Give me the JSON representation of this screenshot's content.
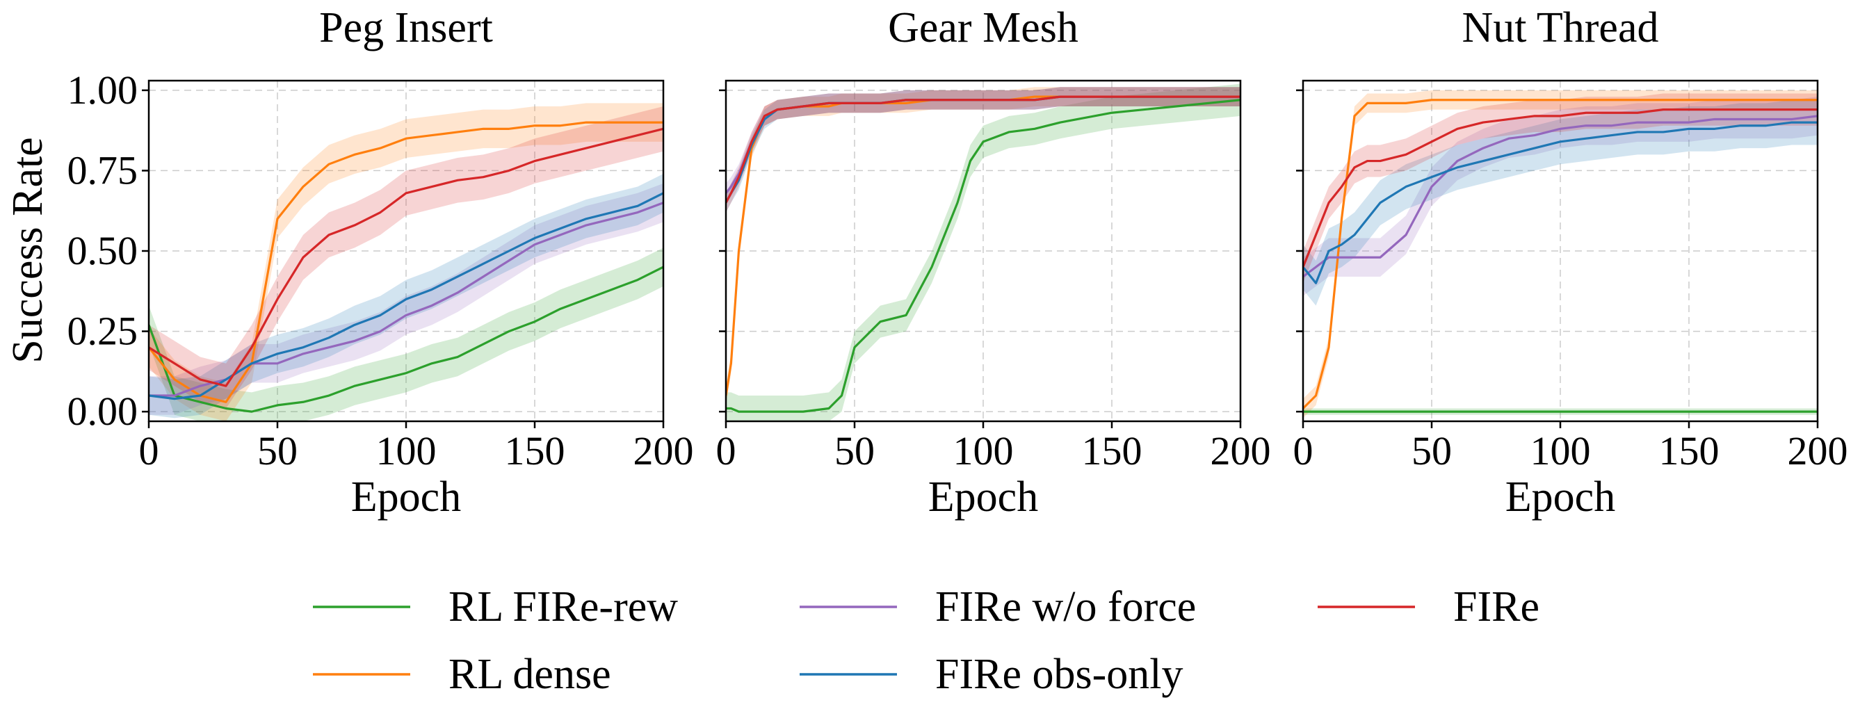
{
  "chart_data": [
    {
      "type": "line",
      "title": "Peg Insert",
      "xlabel": "Epoch",
      "ylabel": "Success Rate",
      "xlim": [
        0,
        200
      ],
      "ylim": [
        -0.03,
        1.03
      ],
      "xticks": [
        "0",
        "50",
        "100",
        "150",
        "200"
      ],
      "yticks": [
        "0.00",
        "0.25",
        "0.50",
        "0.75",
        "1.00"
      ],
      "grid": true,
      "x": [
        0,
        10,
        20,
        30,
        40,
        50,
        60,
        70,
        80,
        90,
        100,
        110,
        120,
        130,
        140,
        150,
        160,
        170,
        180,
        190,
        200
      ],
      "series": [
        {
          "name": "RL FIRe-rew",
          "color": "#2ca02c",
          "band": 0.06,
          "values": [
            0.27,
            0.05,
            0.03,
            0.01,
            0.0,
            0.02,
            0.03,
            0.05,
            0.08,
            0.1,
            0.12,
            0.15,
            0.17,
            0.21,
            0.25,
            0.28,
            0.32,
            0.35,
            0.38,
            0.41,
            0.45
          ]
        },
        {
          "name": "RL dense",
          "color": "#ff7f0e",
          "band": 0.06,
          "values": [
            0.2,
            0.1,
            0.05,
            0.03,
            0.15,
            0.6,
            0.7,
            0.77,
            0.8,
            0.82,
            0.85,
            0.86,
            0.87,
            0.88,
            0.88,
            0.89,
            0.89,
            0.9,
            0.9,
            0.9,
            0.9
          ]
        },
        {
          "name": "FIRe w/o force",
          "color": "#9467bd",
          "band": 0.06,
          "values": [
            0.05,
            0.05,
            0.08,
            0.1,
            0.15,
            0.15,
            0.18,
            0.2,
            0.22,
            0.25,
            0.3,
            0.33,
            0.37,
            0.42,
            0.47,
            0.52,
            0.55,
            0.58,
            0.6,
            0.62,
            0.65
          ]
        },
        {
          "name": "FIRe obs-only",
          "color": "#1f77b4",
          "band": 0.06,
          "values": [
            0.05,
            0.04,
            0.05,
            0.1,
            0.15,
            0.18,
            0.2,
            0.23,
            0.27,
            0.3,
            0.35,
            0.38,
            0.42,
            0.46,
            0.5,
            0.54,
            0.57,
            0.6,
            0.62,
            0.64,
            0.68
          ]
        },
        {
          "name": "FIRe",
          "color": "#d62728",
          "band": 0.07,
          "values": [
            0.2,
            0.15,
            0.1,
            0.08,
            0.2,
            0.35,
            0.48,
            0.55,
            0.58,
            0.62,
            0.68,
            0.7,
            0.72,
            0.73,
            0.75,
            0.78,
            0.8,
            0.82,
            0.84,
            0.86,
            0.88
          ]
        }
      ]
    },
    {
      "type": "line",
      "title": "Gear Mesh",
      "xlabel": "Epoch",
      "xlim": [
        0,
        200
      ],
      "ylim": [
        -0.03,
        1.03
      ],
      "xticks": [
        "0",
        "50",
        "100",
        "150",
        "200"
      ],
      "grid": true,
      "x": [
        0,
        2,
        5,
        10,
        15,
        20,
        30,
        40,
        45,
        50,
        60,
        70,
        80,
        90,
        95,
        100,
        110,
        120,
        130,
        150,
        175,
        200
      ],
      "series": [
        {
          "name": "RL FIRe-rew",
          "color": "#2ca02c",
          "band": 0.05,
          "values": [
            0.01,
            0.01,
            0.0,
            0.0,
            0.0,
            0.0,
            0.0,
            0.01,
            0.05,
            0.2,
            0.28,
            0.3,
            0.45,
            0.65,
            0.78,
            0.84,
            0.87,
            0.88,
            0.9,
            0.93,
            0.95,
            0.97
          ]
        },
        {
          "name": "RL dense",
          "color": "#ff7f0e",
          "band": 0.03,
          "values": [
            0.05,
            0.15,
            0.5,
            0.82,
            0.92,
            0.94,
            0.95,
            0.95,
            0.96,
            0.96,
            0.96,
            0.96,
            0.97,
            0.97,
            0.97,
            0.97,
            0.97,
            0.98,
            0.98,
            0.98,
            0.98,
            0.98
          ]
        },
        {
          "name": "FIRe w/o force",
          "color": "#9467bd",
          "band": 0.03,
          "values": [
            0.68,
            0.7,
            0.74,
            0.84,
            0.92,
            0.94,
            0.95,
            0.96,
            0.96,
            0.96,
            0.96,
            0.97,
            0.97,
            0.97,
            0.97,
            0.97,
            0.97,
            0.97,
            0.98,
            0.98,
            0.98,
            0.98
          ]
        },
        {
          "name": "FIRe obs-only",
          "color": "#1f77b4",
          "band": 0.03,
          "values": [
            0.65,
            0.68,
            0.72,
            0.83,
            0.91,
            0.94,
            0.95,
            0.96,
            0.96,
            0.96,
            0.96,
            0.97,
            0.97,
            0.97,
            0.97,
            0.97,
            0.97,
            0.97,
            0.98,
            0.98,
            0.98,
            0.98
          ]
        },
        {
          "name": "FIRe",
          "color": "#d62728",
          "band": 0.03,
          "values": [
            0.65,
            0.68,
            0.73,
            0.84,
            0.92,
            0.94,
            0.95,
            0.96,
            0.96,
            0.96,
            0.96,
            0.97,
            0.97,
            0.97,
            0.97,
            0.97,
            0.97,
            0.97,
            0.98,
            0.98,
            0.98,
            0.98
          ]
        }
      ]
    },
    {
      "type": "line",
      "title": "Nut Thread",
      "xlabel": "Epoch",
      "xlim": [
        0,
        200
      ],
      "ylim": [
        -0.03,
        1.03
      ],
      "xticks": [
        "0",
        "50",
        "100",
        "150",
        "200"
      ],
      "grid": true,
      "x": [
        0,
        5,
        10,
        15,
        20,
        25,
        30,
        40,
        50,
        60,
        70,
        80,
        90,
        100,
        110,
        120,
        130,
        140,
        150,
        160,
        170,
        180,
        190,
        200
      ],
      "series": [
        {
          "name": "RL FIRe-rew",
          "color": "#2ca02c",
          "band": 0.01,
          "values": [
            0.0,
            0.0,
            0.0,
            0.0,
            0.0,
            0.0,
            0.0,
            0.0,
            0.0,
            0.0,
            0.0,
            0.0,
            0.0,
            0.0,
            0.0,
            0.0,
            0.0,
            0.0,
            0.0,
            0.0,
            0.0,
            0.0,
            0.0,
            0.0
          ]
        },
        {
          "name": "RL dense",
          "color": "#ff7f0e",
          "band": 0.03,
          "values": [
            0.01,
            0.05,
            0.2,
            0.6,
            0.92,
            0.96,
            0.96,
            0.96,
            0.97,
            0.97,
            0.97,
            0.97,
            0.97,
            0.97,
            0.97,
            0.97,
            0.97,
            0.97,
            0.97,
            0.97,
            0.97,
            0.97,
            0.97,
            0.97
          ]
        },
        {
          "name": "FIRe w/o force",
          "color": "#9467bd",
          "band": 0.06,
          "values": [
            0.42,
            0.45,
            0.48,
            0.48,
            0.48,
            0.48,
            0.48,
            0.55,
            0.7,
            0.78,
            0.82,
            0.85,
            0.86,
            0.88,
            0.89,
            0.89,
            0.9,
            0.9,
            0.9,
            0.91,
            0.91,
            0.91,
            0.91,
            0.92
          ]
        },
        {
          "name": "FIRe obs-only",
          "color": "#1f77b4",
          "band": 0.07,
          "values": [
            0.45,
            0.4,
            0.5,
            0.52,
            0.55,
            0.6,
            0.65,
            0.7,
            0.73,
            0.76,
            0.78,
            0.8,
            0.82,
            0.84,
            0.85,
            0.86,
            0.87,
            0.87,
            0.88,
            0.88,
            0.89,
            0.89,
            0.9,
            0.9
          ]
        },
        {
          "name": "FIRe",
          "color": "#d62728",
          "band": 0.05,
          "values": [
            0.45,
            0.55,
            0.65,
            0.7,
            0.76,
            0.78,
            0.78,
            0.8,
            0.84,
            0.88,
            0.9,
            0.91,
            0.92,
            0.92,
            0.93,
            0.93,
            0.93,
            0.94,
            0.94,
            0.94,
            0.94,
            0.94,
            0.94,
            0.94
          ]
        }
      ]
    }
  ],
  "legend": {
    "placement": "bottom",
    "items": [
      {
        "label": "RL FIRe-rew",
        "color": "#2ca02c"
      },
      {
        "label": "RL dense",
        "color": "#ff7f0e"
      },
      {
        "label": "FIRe w/o force",
        "color": "#9467bd"
      },
      {
        "label": "FIRe obs-only",
        "color": "#1f77b4"
      },
      {
        "label": "FIRe",
        "color": "#d62728"
      }
    ]
  }
}
